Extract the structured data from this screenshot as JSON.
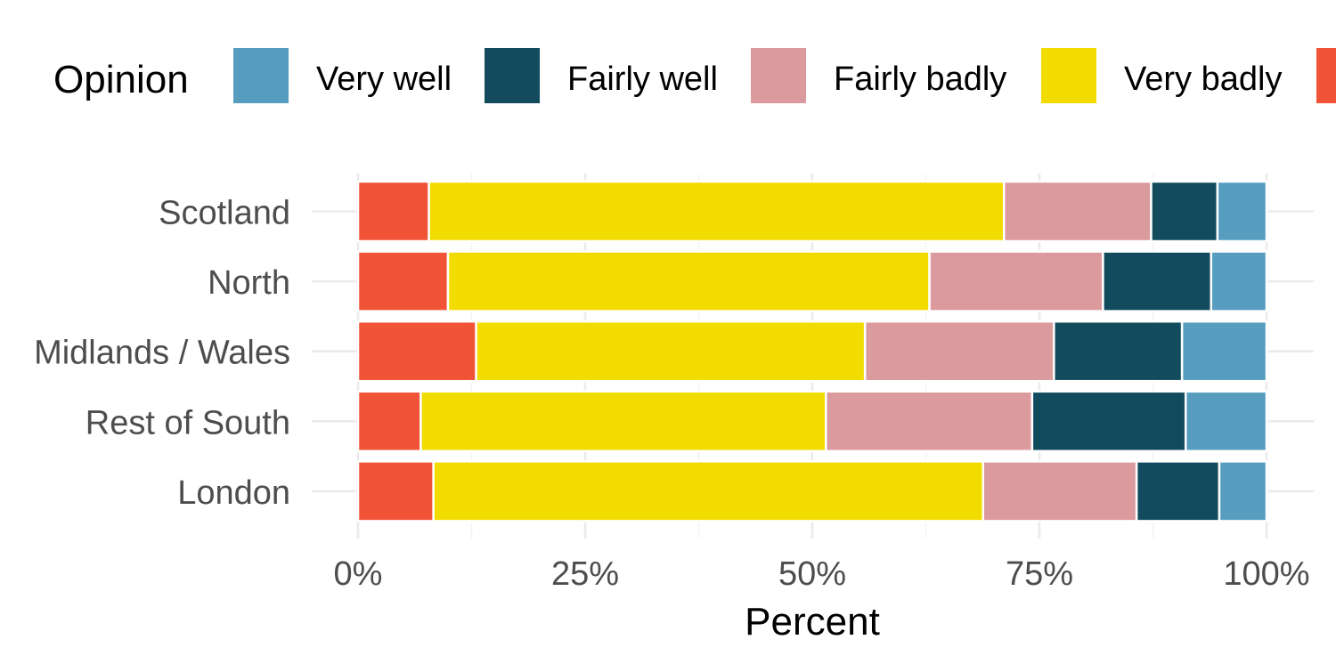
{
  "chart_data": {
    "type": "bar",
    "orientation": "horizontal",
    "stacked": true,
    "title": "",
    "xlabel": "Percent",
    "ylabel": "",
    "xlim": [
      0,
      100
    ],
    "x_ticks": [
      0,
      25,
      50,
      75,
      100
    ],
    "x_tick_labels": [
      "0%",
      "25%",
      "50%",
      "75%",
      "100%"
    ],
    "grid": true,
    "legend_title": "Opinion",
    "legend_position": "top",
    "categories": [
      "Scotland",
      "North",
      "Midlands / Wales",
      "Rest of South",
      "London"
    ],
    "series": [
      {
        "name": "",
        "color": "#F15336",
        "values": [
          7.8,
          9.9,
          13,
          6.9,
          8.3
        ]
      },
      {
        "name": "Very badly",
        "color": "#F2DC00",
        "values": [
          63.3,
          53,
          42.8,
          44.6,
          60.5
        ]
      },
      {
        "name": "Fairly badly",
        "color": "#DB9A9E",
        "values": [
          16.2,
          19.1,
          20.8,
          22.7,
          16.9
        ]
      },
      {
        "name": "Fairly well",
        "color": "#134B5E",
        "values": [
          7.3,
          11.9,
          14.1,
          16.9,
          9.1
        ]
      },
      {
        "name": "Very well",
        "color": "#569DC0",
        "values": [
          5.4,
          6.1,
          9.3,
          8.9,
          5.2
        ]
      }
    ],
    "legend_order": [
      "Very well",
      "Fairly well",
      "Fairly badly",
      "Very badly",
      ""
    ]
  }
}
